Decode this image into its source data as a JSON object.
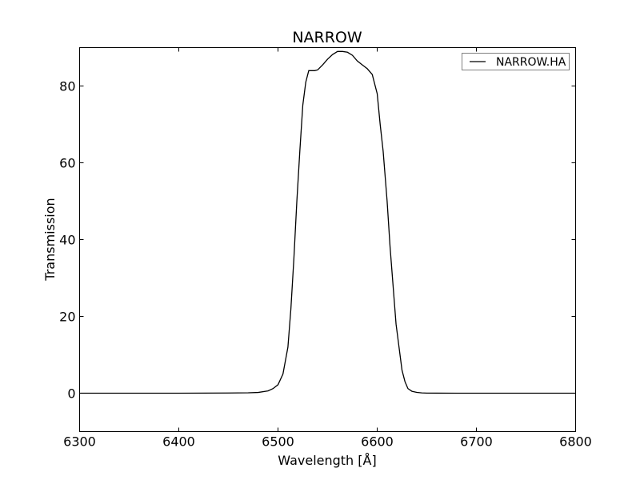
{
  "chart_data": {
    "type": "line",
    "title": "NARROW",
    "xlabel": "Wavelength [Å]",
    "ylabel": "Transmission",
    "xlim": [
      6300,
      6800
    ],
    "ylim": [
      -10,
      90
    ],
    "xticks": [
      6300,
      6400,
      6500,
      6600,
      6700,
      6800
    ],
    "yticks": [
      0,
      20,
      40,
      60,
      80
    ],
    "grid": false,
    "legend": "top-right",
    "colors": {
      "line": "#000000",
      "legend_border": "#808080"
    },
    "series": [
      {
        "name": "NARROW.HA",
        "x": [
          6300,
          6350,
          6400,
          6450,
          6470,
          6480,
          6490,
          6495,
          6500,
          6505,
          6510,
          6513,
          6516,
          6519,
          6522,
          6525,
          6528,
          6531,
          6534,
          6537,
          6540,
          6545,
          6550,
          6555,
          6560,
          6565,
          6570,
          6575,
          6580,
          6585,
          6590,
          6595,
          6600,
          6603,
          6606,
          6610,
          6613,
          6616,
          6619,
          6622,
          6625,
          6628,
          6631,
          6635,
          6640,
          6645,
          6650,
          6660,
          6680,
          6700,
          6750,
          6800
        ],
        "y": [
          0,
          0,
          0,
          0.05,
          0.1,
          0.2,
          0.6,
          1.2,
          2.2,
          5,
          12,
          22,
          35,
          50,
          63,
          75,
          81,
          84,
          84,
          84,
          84.2,
          85.5,
          87,
          88.2,
          89,
          89,
          88.8,
          88,
          86.5,
          85.5,
          84.5,
          83,
          78,
          70,
          63,
          50,
          38,
          28,
          18,
          12,
          6,
          3,
          1.2,
          0.5,
          0.2,
          0.08,
          0.03,
          0.01,
          0,
          0,
          0,
          0
        ]
      }
    ]
  }
}
